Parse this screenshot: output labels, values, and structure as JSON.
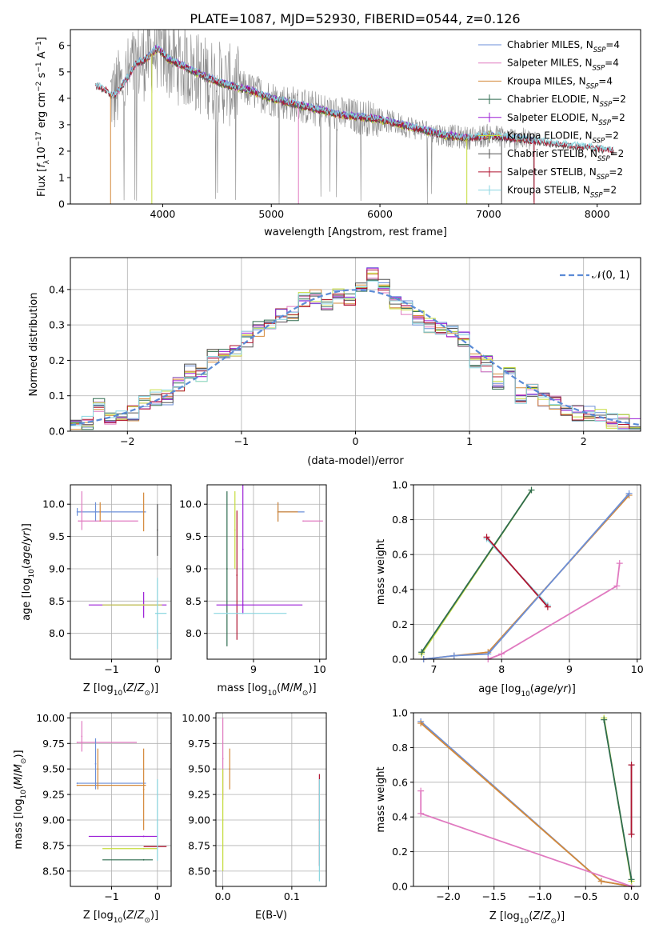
{
  "figure": {
    "title": "PLATE=1087, MJD=52930, FIBERID=0544, z=0.126"
  },
  "colors": {
    "chabrier_miles": "#6b8fd8",
    "salpeter_miles": "#e07ac0",
    "kroupa_miles": "#d4893a",
    "chabrier_elodie": "#2e6b4f",
    "salpeter_elodie": "#9b1fd6",
    "kroupa_elodie": "#c5dc3c",
    "chabrier_stelib": "#555555",
    "salpeter_stelib": "#b01530",
    "kroupa_stelib": "#8ad6e0",
    "observed_spectrum": "#888888",
    "normal_curve": "#5b8bd6",
    "grid": "#b0b0b0"
  },
  "chart_data": [
    {
      "id": "spectrum",
      "type": "line",
      "title": "PLATE=1087, MJD=52930, FIBERID=0544, z=0.126",
      "xlabel": "wavelength [Angstrom, rest frame]",
      "ylabel": "Flux [f_λ 10^-17 erg cm^-2 s^-1 A^-1]",
      "xlim": [
        3150,
        8400
      ],
      "ylim": [
        0,
        6.6
      ],
      "xticks": [
        4000,
        5000,
        6000,
        7000,
        8000
      ],
      "yticks": [
        0,
        1,
        2,
        3,
        4,
        5,
        6
      ],
      "grid": false,
      "legend_position": "top-right",
      "legend": [
        {
          "label": "Chabrier MILES, N",
          "sub": "SSP",
          "suffix": "=4",
          "color_key": "chabrier_miles"
        },
        {
          "label": "Salpeter MILES, N",
          "sub": "SSP",
          "suffix": "=4",
          "color_key": "salpeter_miles"
        },
        {
          "label": "Kroupa MILES, N",
          "sub": "SSP",
          "suffix": "=4",
          "color_key": "kroupa_miles"
        },
        {
          "label": "Chabrier ELODIE, N",
          "sub": "SSP",
          "suffix": "=2",
          "color_key": "chabrier_elodie"
        },
        {
          "label": "Salpeter ELODIE, N",
          "sub": "SSP",
          "suffix": "=2",
          "color_key": "salpeter_elodie"
        },
        {
          "label": "Kroupa ELODIE, N",
          "sub": "SSP",
          "suffix": "=2",
          "color_key": "kroupa_elodie"
        },
        {
          "label": "Chabrier STELIB, N",
          "sub": "SSP",
          "suffix": "=2",
          "color_key": "chabrier_stelib"
        },
        {
          "label": "Salpeter STELIB, N",
          "sub": "SSP",
          "suffix": "=2",
          "color_key": "salpeter_stelib"
        },
        {
          "label": "Kroupa STELIB, N",
          "sub": "SSP",
          "suffix": "=2",
          "color_key": "kroupa_stelib"
        }
      ],
      "model_continuum": {
        "x": [
          3380,
          3480,
          3550,
          3650,
          3750,
          3850,
          3950,
          4050,
          4200,
          4400,
          4600,
          4800,
          5000,
          5200,
          5400,
          5600,
          5800,
          6000,
          6200,
          6400,
          6600,
          6800,
          7000,
          7200,
          7400,
          7600,
          7800,
          8000,
          8200
        ],
        "y": [
          4.5,
          4.3,
          4.1,
          4.6,
          5.3,
          5.5,
          5.9,
          5.5,
          5.2,
          4.8,
          4.5,
          4.3,
          4.0,
          3.8,
          3.6,
          3.4,
          3.3,
          3.2,
          3.0,
          2.8,
          2.6,
          2.5,
          2.6,
          2.5,
          2.4,
          2.3,
          2.2,
          2.1,
          2.0
        ]
      },
      "observed_range": [
        3520,
        7450
      ],
      "model_series_ranges": {
        "miles": [
          3540,
          7420
        ],
        "elodie": [
          3900,
          6800
        ],
        "stelib": [
          3380,
          8150
        ]
      }
    },
    {
      "id": "residuals",
      "type": "histogram",
      "xlabel": "(data-model)/error",
      "ylabel": "Normed distribution",
      "xlim": [
        -2.5,
        2.5
      ],
      "ylim": [
        0,
        0.49
      ],
      "xticks": [
        -2,
        -1,
        0,
        1,
        2
      ],
      "yticks": [
        0.0,
        0.1,
        0.2,
        0.3,
        0.4
      ],
      "grid": true,
      "legend_position": "top-right",
      "legend": [
        {
          "label": "𝒩(0, 1)",
          "style": "dashed",
          "color_key": "normal_curve"
        }
      ],
      "bins": [
        -2.5,
        -2.4,
        -2.3,
        -2.2,
        -2.1,
        -2.0,
        -1.9,
        -1.8,
        -1.7,
        -1.6,
        -1.5,
        -1.4,
        -1.3,
        -1.2,
        -1.1,
        -1.0,
        -0.9,
        -0.8,
        -0.7,
        -0.6,
        -0.5,
        -0.4,
        -0.3,
        -0.2,
        -0.1,
        0.0,
        0.1,
        0.2,
        0.3,
        0.4,
        0.5,
        0.6,
        0.7,
        0.8,
        0.9,
        1.0,
        1.1,
        1.2,
        1.3,
        1.4,
        1.5,
        1.6,
        1.7,
        1.8,
        1.9,
        2.0,
        2.1,
        2.2,
        2.3,
        2.4,
        2.5
      ],
      "base_density": [
        0.02,
        0.02,
        0.075,
        0.03,
        0.045,
        0.05,
        0.08,
        0.095,
        0.095,
        0.13,
        0.17,
        0.16,
        0.215,
        0.22,
        0.22,
        0.26,
        0.29,
        0.31,
        0.33,
        0.33,
        0.37,
        0.38,
        0.35,
        0.38,
        0.37,
        0.4,
        0.44,
        0.41,
        0.36,
        0.35,
        0.32,
        0.3,
        0.29,
        0.28,
        0.26,
        0.2,
        0.19,
        0.14,
        0.16,
        0.1,
        0.12,
        0.09,
        0.08,
        0.06,
        0.05,
        0.05,
        0.04,
        0.03,
        0.025,
        0.02
      ]
    },
    {
      "id": "z-vs-age",
      "type": "scatter",
      "xlabel": "Z [log10(Z/Z⊙)]",
      "ylabel": "age [log10(age/yr)]",
      "xlim": [
        -1.9,
        0.3
      ],
      "ylim": [
        7.6,
        10.3
      ],
      "xticks": [
        -1,
        0
      ],
      "yticks": [
        8.0,
        8.5,
        9.0,
        9.5,
        10.0
      ],
      "grid": true,
      "points": [
        {
          "x": -1.75,
          "y": 9.88,
          "xerr_lo": 0.0,
          "xerr_hi": 1.5,
          "yerr": 0.06,
          "color_key": "chabrier_miles"
        },
        {
          "x": -1.35,
          "y": 9.88,
          "xerr_lo": 0.0,
          "xerr_hi": 0.0,
          "yerr": 0.15,
          "color_key": "chabrier_miles"
        },
        {
          "x": -1.72,
          "y": 9.74,
          "xerr_lo": 0.0,
          "xerr_hi": 1.3,
          "yerr": 0.0,
          "color_key": "salpeter_miles"
        },
        {
          "x": -1.65,
          "y": 9.9,
          "xerr_lo": 0.0,
          "xerr_hi": 0.0,
          "yerr": 0.3,
          "color_key": "salpeter_miles"
        },
        {
          "x": -0.3,
          "y": 9.88,
          "xerr_lo": 0.0,
          "xerr_hi": 0.0,
          "yerr": 0.3,
          "color_key": "kroupa_miles"
        },
        {
          "x": -1.25,
          "y": 9.88,
          "xerr_lo": 0.0,
          "xerr_hi": 0.0,
          "yerr": 0.15,
          "color_key": "kroupa_miles"
        },
        {
          "x": -0.3,
          "y": 8.44,
          "xerr_lo": 1.2,
          "xerr_hi": 0.5,
          "yerr": 0.2,
          "color_key": "salpeter_elodie"
        },
        {
          "x": -0.3,
          "y": 8.44,
          "xerr_lo": 0.9,
          "xerr_hi": 0.4,
          "yerr": 0.0,
          "color_key": "kroupa_elodie"
        },
        {
          "x": 0.0,
          "y": 9.6,
          "xerr_lo": 0.0,
          "xerr_hi": 0.0,
          "yerr": 0.4,
          "color_key": "chabrier_stelib"
        },
        {
          "x": 0.0,
          "y": 8.31,
          "xerr_lo": 0.05,
          "xerr_hi": 0.2,
          "yerr": 0.55,
          "color_key": "kroupa_stelib"
        }
      ]
    },
    {
      "id": "mass-vs-age",
      "type": "scatter",
      "xlabel": "mass [log10(M/M⊙)]",
      "ylabel": "",
      "xlim": [
        8.3,
        10.1
      ],
      "ylim": [
        7.6,
        10.3
      ],
      "xticks": [
        9,
        10
      ],
      "yticks": [
        8.0,
        8.5,
        9.0,
        9.5,
        10.0
      ],
      "grid": true,
      "points": [
        {
          "x": 8.6,
          "y": 9.0,
          "xerr_lo": 0.0,
          "xerr_hi": 0.0,
          "yerr": 1.2,
          "color_key": "chabrier_elodie"
        },
        {
          "x": 8.72,
          "y": 9.6,
          "xerr_lo": 0.0,
          "xerr_hi": 0.0,
          "yerr": 0.6,
          "color_key": "kroupa_elodie"
        },
        {
          "x": 8.75,
          "y": 8.9,
          "xerr_lo": 0.0,
          "xerr_hi": 0.0,
          "yerr": 1.0,
          "color_key": "salpeter_stelib"
        },
        {
          "x": 8.84,
          "y": 9.3,
          "xerr_lo": 0.0,
          "xerr_hi": 0.0,
          "yerr": 1.0,
          "color_key": "salpeter_elodie"
        },
        {
          "x": 8.84,
          "y": 8.44,
          "xerr_lo": 0.4,
          "xerr_hi": 0.9,
          "yerr": 0.0,
          "color_key": "salpeter_elodie"
        },
        {
          "x": 8.6,
          "y": 8.31,
          "xerr_lo": 0.2,
          "xerr_hi": 0.9,
          "yerr": 0.0,
          "color_key": "kroupa_stelib"
        },
        {
          "x": 9.75,
          "y": 9.74,
          "xerr_lo": 0.0,
          "xerr_hi": 0.3,
          "yerr": 0.0,
          "color_key": "salpeter_miles"
        },
        {
          "x": 9.37,
          "y": 9.88,
          "xerr_lo": 0.0,
          "xerr_hi": 0.4,
          "yerr": 0.15,
          "color_key": "chabrier_miles"
        },
        {
          "x": 9.37,
          "y": 9.88,
          "xerr_lo": 0.0,
          "xerr_hi": 0.3,
          "yerr": 0.15,
          "color_key": "kroupa_miles"
        }
      ]
    },
    {
      "id": "age-vs-weight",
      "type": "line",
      "xlabel": "age [log10(age/yr)]",
      "ylabel": "mass weight",
      "xlim": [
        6.7,
        10.05
      ],
      "ylim": [
        0,
        1.0
      ],
      "xticks": [
        7,
        8,
        9,
        10
      ],
      "yticks": [
        0.0,
        0.2,
        0.4,
        0.6,
        0.8,
        1.0
      ],
      "grid": true,
      "series": [
        {
          "color_key": "kroupa_elodie",
          "x": [
            6.82,
            8.44
          ],
          "y": [
            0.03,
            0.97
          ]
        },
        {
          "color_key": "chabrier_elodie",
          "x": [
            6.82,
            8.44
          ],
          "y": [
            0.04,
            0.97
          ]
        },
        {
          "color_key": "kroupa_stelib",
          "x": [
            7.78,
            8.68
          ],
          "y": [
            0.69,
            0.31
          ]
        },
        {
          "color_key": "salpeter_stelib",
          "x": [
            7.78,
            8.68
          ],
          "y": [
            0.7,
            0.3
          ]
        },
        {
          "color_key": "kroupa_miles",
          "x": [
            6.85,
            7.3,
            7.8,
            9.88
          ],
          "y": [
            0.0,
            0.02,
            0.04,
            0.94
          ]
        },
        {
          "color_key": "chabrier_miles",
          "x": [
            6.85,
            7.3,
            7.8,
            9.88
          ],
          "y": [
            0.0,
            0.02,
            0.03,
            0.95
          ]
        },
        {
          "color_key": "salpeter_miles",
          "x": [
            7.8,
            8.0,
            9.7,
            9.74
          ],
          "y": [
            0.0,
            0.03,
            0.42,
            0.55
          ]
        }
      ]
    },
    {
      "id": "z-vs-mass",
      "type": "scatter",
      "xlabel": "Z [log10(Z/Z⊙)]",
      "ylabel": "mass [log10(M/M⊙)]",
      "xlim": [
        -1.9,
        0.3
      ],
      "ylim": [
        8.35,
        10.05
      ],
      "xticks": [
        -1,
        0
      ],
      "yticks": [
        8.5,
        8.75,
        9.0,
        9.25,
        9.5,
        9.75,
        10.0
      ],
      "grid": true,
      "points": [
        {
          "x": -1.75,
          "y": 9.36,
          "xerr_lo": 0.0,
          "xerr_hi": 1.5,
          "yerr": 0.0,
          "color_key": "chabrier_miles"
        },
        {
          "x": -1.75,
          "y": 9.34,
          "xerr_lo": 0.0,
          "xerr_hi": 1.5,
          "yerr": 0.0,
          "color_key": "kroupa_miles"
        },
        {
          "x": -1.75,
          "y": 9.76,
          "xerr_lo": 0.0,
          "xerr_hi": 1.3,
          "yerr": 0.0,
          "color_key": "salpeter_miles"
        },
        {
          "x": -1.65,
          "y": 9.82,
          "xerr_lo": 0.0,
          "xerr_hi": 0.0,
          "yerr": 0.15,
          "color_key": "salpeter_miles"
        },
        {
          "x": -1.35,
          "y": 9.55,
          "xerr_lo": 0.0,
          "xerr_hi": 0.0,
          "yerr": 0.25,
          "color_key": "chabrier_miles"
        },
        {
          "x": -1.3,
          "y": 9.5,
          "xerr_lo": 0.0,
          "xerr_hi": 0.0,
          "yerr": 0.2,
          "color_key": "kroupa_miles"
        },
        {
          "x": -0.3,
          "y": 9.3,
          "xerr_lo": 0.0,
          "xerr_hi": 0.0,
          "yerr": 0.4,
          "color_key": "kroupa_miles"
        },
        {
          "x": -0.3,
          "y": 8.84,
          "xerr_lo": 1.2,
          "xerr_hi": 0.3,
          "yerr": 0.0,
          "color_key": "salpeter_elodie"
        },
        {
          "x": -0.3,
          "y": 8.72,
          "xerr_lo": 0.9,
          "xerr_hi": 0.3,
          "yerr": 0.0,
          "color_key": "kroupa_elodie"
        },
        {
          "x": -0.3,
          "y": 8.61,
          "xerr_lo": 0.9,
          "xerr_hi": 0.2,
          "yerr": 0.0,
          "color_key": "chabrier_elodie"
        },
        {
          "x": 0.0,
          "y": 8.74,
          "xerr_lo": 0.3,
          "xerr_hi": 0.2,
          "yerr": 0.0,
          "color_key": "salpeter_stelib"
        },
        {
          "x": 0.0,
          "y": 9.0,
          "xerr_lo": 0.0,
          "xerr_hi": 0.0,
          "yerr": 0.4,
          "color_key": "kroupa_stelib"
        }
      ]
    },
    {
      "id": "ebv-vs-mass",
      "type": "scatter",
      "xlabel": "E(B-V)",
      "ylabel": "",
      "xlim": [
        -0.01,
        0.15
      ],
      "ylim": [
        8.35,
        10.05
      ],
      "xticks": [
        0.0,
        0.1
      ],
      "yticks": [
        8.5,
        8.75,
        9.0,
        9.25,
        9.5,
        9.75,
        10.0
      ],
      "grid": true,
      "points": [
        {
          "x": 0.0,
          "y": 9.6,
          "xerr_lo": 0.0,
          "xerr_hi": 0.0,
          "yerr": 0.4,
          "color_key": "salpeter_miles"
        },
        {
          "x": 0.0,
          "y": 9.0,
          "xerr_lo": 0.0,
          "xerr_hi": 0.0,
          "yerr": 0.5,
          "color_key": "kroupa_elodie"
        },
        {
          "x": 0.01,
          "y": 9.5,
          "xerr_lo": 0.0,
          "xerr_hi": 0.0,
          "yerr": 0.2,
          "color_key": "kroupa_miles"
        },
        {
          "x": 0.14,
          "y": 9.0,
          "xerr_lo": 0.0,
          "xerr_hi": 0.0,
          "yerr": 0.45,
          "color_key": "salpeter_stelib"
        },
        {
          "x": 0.14,
          "y": 8.9,
          "xerr_lo": 0.0,
          "xerr_hi": 0.0,
          "yerr": 0.5,
          "color_key": "kroupa_stelib"
        }
      ]
    },
    {
      "id": "z-vs-weight",
      "type": "line",
      "xlabel": "Z [log10(Z/Z⊙)]",
      "ylabel": "mass weight",
      "xlim": [
        -2.38,
        0.1
      ],
      "ylim": [
        0,
        1.0
      ],
      "xticks": [
        -2.0,
        -1.5,
        -1.0,
        -0.5,
        0.0
      ],
      "yticks": [
        0.0,
        0.2,
        0.4,
        0.6,
        0.8,
        1.0
      ],
      "grid": true,
      "series": [
        {
          "color_key": "chabrier_miles",
          "x": [
            -2.3,
            -0.33,
            0.0
          ],
          "y": [
            0.95,
            0.03,
            0.0
          ]
        },
        {
          "color_key": "kroupa_miles",
          "x": [
            -2.3,
            -0.33,
            0.0
          ],
          "y": [
            0.94,
            0.03,
            0.0
          ]
        },
        {
          "color_key": "salpeter_miles",
          "x": [
            -2.3,
            -2.3,
            0.0
          ],
          "y": [
            0.55,
            0.42,
            0.0
          ]
        },
        {
          "color_key": "kroupa_elodie",
          "x": [
            -0.3,
            0.0
          ],
          "y": [
            0.97,
            0.03
          ]
        },
        {
          "color_key": "chabrier_elodie",
          "x": [
            -0.3,
            0.0
          ],
          "y": [
            0.96,
            0.04
          ]
        },
        {
          "color_key": "kroupa_stelib",
          "x": [
            0.0,
            0.0
          ],
          "y": [
            0.7,
            0.3
          ]
        },
        {
          "color_key": "salpeter_stelib",
          "x": [
            0.0,
            0.0
          ],
          "y": [
            0.7,
            0.3
          ]
        }
      ]
    }
  ]
}
